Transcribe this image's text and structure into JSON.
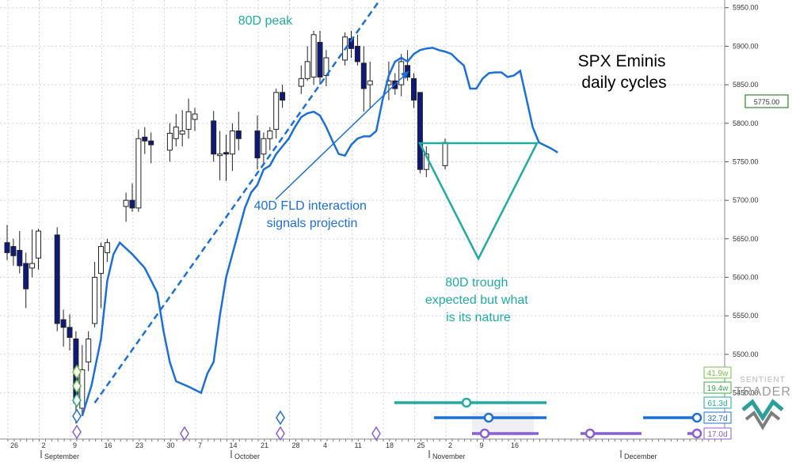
{
  "chart_data": {
    "type": "candlestick",
    "title": "SPX Eminis daily cycles",
    "watermark": "SENTIENT TRADER",
    "current_price_label": "5775.00",
    "y_ticks": [
      5450,
      5500,
      5550,
      5600,
      5650,
      5700,
      5750,
      5800,
      5850,
      5900,
      5950
    ],
    "y_tick_labels": [
      "5450.00",
      "5500.00",
      "5550.00",
      "5600.00",
      "5650.00",
      "5700.00",
      "5750.00",
      "5800.00",
      "5850.00",
      "5900.00",
      "5950.00"
    ],
    "ylim": [
      5390,
      5960
    ],
    "x_day_labels": [
      "26",
      "2",
      "9",
      "16",
      "23",
      "30",
      "7",
      "14",
      "21",
      "28",
      "4",
      "11",
      "18",
      "25",
      "2",
      "9",
      "16"
    ],
    "x_month_labels": [
      "September",
      "October",
      "November",
      "December"
    ],
    "candles": [
      {
        "d": 0,
        "o": 5645,
        "h": 5668,
        "l": 5622,
        "c": 5632
      },
      {
        "d": 1,
        "o": 5640,
        "h": 5650,
        "l": 5615,
        "c": 5628
      },
      {
        "d": 2,
        "o": 5635,
        "h": 5660,
        "l": 5605,
        "c": 5615
      },
      {
        "d": 3,
        "o": 5618,
        "h": 5632,
        "l": 5560,
        "c": 5585
      },
      {
        "d": 4,
        "o": 5612,
        "h": 5662,
        "l": 5600,
        "c": 5618
      },
      {
        "d": 5,
        "o": 5625,
        "h": 5663,
        "l": 5610,
        "c": 5660
      },
      {
        "d": 8,
        "o": 5655,
        "h": 5665,
        "l": 5530,
        "c": 5540
      },
      {
        "d": 9,
        "o": 5545,
        "h": 5558,
        "l": 5510,
        "c": 5535
      },
      {
        "d": 10,
        "o": 5535,
        "h": 5552,
        "l": 5505,
        "c": 5522
      },
      {
        "d": 11,
        "o": 5520,
        "h": 5530,
        "l": 5410,
        "c": 5437
      },
      {
        "d": 12,
        "o": 5430,
        "h": 5512,
        "l": 5420,
        "c": 5480
      },
      {
        "d": 13,
        "o": 5490,
        "h": 5530,
        "l": 5478,
        "c": 5520
      },
      {
        "d": 14,
        "o": 5540,
        "h": 5620,
        "l": 5535,
        "c": 5600
      },
      {
        "d": 15,
        "o": 5605,
        "h": 5645,
        "l": 5560,
        "c": 5640
      },
      {
        "d": 16,
        "o": 5632,
        "h": 5650,
        "l": 5620,
        "c": 5645
      },
      {
        "d": 19,
        "o": 5692,
        "h": 5710,
        "l": 5672,
        "c": 5700
      },
      {
        "d": 20,
        "o": 5700,
        "h": 5722,
        "l": 5685,
        "c": 5690
      },
      {
        "d": 21,
        "o": 5690,
        "h": 5792,
        "l": 5685,
        "c": 5780
      },
      {
        "d": 22,
        "o": 5782,
        "h": 5795,
        "l": 5760,
        "c": 5777
      },
      {
        "d": 23,
        "o": 5777,
        "h": 5788,
        "l": 5748,
        "c": 5772
      },
      {
        "d": 26,
        "o": 5765,
        "h": 5800,
        "l": 5750,
        "c": 5787
      },
      {
        "d": 27,
        "o": 5780,
        "h": 5812,
        "l": 5770,
        "c": 5795
      },
      {
        "d": 28,
        "o": 5786,
        "h": 5817,
        "l": 5770,
        "c": 5790
      },
      {
        "d": 29,
        "o": 5792,
        "h": 5832,
        "l": 5780,
        "c": 5815
      },
      {
        "d": 30,
        "o": 5805,
        "h": 5820,
        "l": 5790,
        "c": 5812
      },
      {
        "d": 33,
        "o": 5803,
        "h": 5816,
        "l": 5750,
        "c": 5760
      },
      {
        "d": 34,
        "o": 5758,
        "h": 5790,
        "l": 5726,
        "c": 5760
      },
      {
        "d": 35,
        "o": 5762,
        "h": 5785,
        "l": 5725,
        "c": 5760
      },
      {
        "d": 36,
        "o": 5760,
        "h": 5800,
        "l": 5738,
        "c": 5790
      },
      {
        "d": 37,
        "o": 5790,
        "h": 5815,
        "l": 5765,
        "c": 5780
      },
      {
        "d": 40,
        "o": 5790,
        "h": 5810,
        "l": 5740,
        "c": 5755
      },
      {
        "d": 41,
        "o": 5760,
        "h": 5788,
        "l": 5745,
        "c": 5780
      },
      {
        "d": 42,
        "o": 5780,
        "h": 5795,
        "l": 5765,
        "c": 5790
      },
      {
        "d": 43,
        "o": 5792,
        "h": 5845,
        "l": 5780,
        "c": 5840
      },
      {
        "d": 44,
        "o": 5840,
        "h": 5850,
        "l": 5820,
        "c": 5830
      },
      {
        "d": 47,
        "o": 5848,
        "h": 5875,
        "l": 5838,
        "c": 5858
      },
      {
        "d": 48,
        "o": 5858,
        "h": 5900,
        "l": 5855,
        "c": 5880
      },
      {
        "d": 49,
        "o": 5860,
        "h": 5920,
        "l": 5850,
        "c": 5915
      },
      {
        "d": 50,
        "o": 5905,
        "h": 5920,
        "l": 5850,
        "c": 5860
      },
      {
        "d": 51,
        "o": 5862,
        "h": 5895,
        "l": 5848,
        "c": 5885
      },
      {
        "d": 54,
        "o": 5882,
        "h": 5918,
        "l": 5875,
        "c": 5912
      },
      {
        "d": 55,
        "o": 5910,
        "h": 5920,
        "l": 5885,
        "c": 5897
      },
      {
        "d": 56,
        "o": 5900,
        "h": 5915,
        "l": 5875,
        "c": 5880
      },
      {
        "d": 57,
        "o": 5878,
        "h": 5900,
        "l": 5815,
        "c": 5845
      },
      {
        "d": 58,
        "o": 5850,
        "h": 5880,
        "l": 5820,
        "c": 5855
      },
      {
        "d": 61,
        "o": 5850,
        "h": 5880,
        "l": 5830,
        "c": 5855
      },
      {
        "d": 62,
        "o": 5855,
        "h": 5865,
        "l": 5837,
        "c": 5845
      },
      {
        "d": 63,
        "o": 5850,
        "h": 5890,
        "l": 5835,
        "c": 5880
      },
      {
        "d": 64,
        "o": 5875,
        "h": 5895,
        "l": 5855,
        "c": 5860
      },
      {
        "d": 65,
        "o": 5858,
        "h": 5865,
        "l": 5820,
        "c": 5830
      },
      {
        "d": 66,
        "o": 5840,
        "h": 5840,
        "l": 5735,
        "c": 5740
      },
      {
        "d": 67,
        "o": 5740,
        "h": 5770,
        "l": 5730,
        "c": 5760
      },
      {
        "d": 70,
        "o": 5745,
        "h": 5780,
        "l": 5740,
        "c": 5775
      }
    ],
    "cycle_line": [
      [
        12,
        5420
      ],
      [
        13.5,
        5460
      ],
      [
        15,
        5520
      ],
      [
        16,
        5595
      ],
      [
        17,
        5630
      ],
      [
        18,
        5645
      ],
      [
        20,
        5630
      ],
      [
        22,
        5612
      ],
      [
        24,
        5580
      ],
      [
        25,
        5530
      ],
      [
        26,
        5490
      ],
      [
        27,
        5465
      ],
      [
        29,
        5458
      ],
      [
        31,
        5450
      ],
      [
        32,
        5475
      ],
      [
        33,
        5490
      ],
      [
        34,
        5550
      ],
      [
        35,
        5600
      ],
      [
        36,
        5630
      ],
      [
        37,
        5660
      ],
      [
        38,
        5690
      ],
      [
        39,
        5710
      ],
      [
        40,
        5720
      ],
      [
        41,
        5740
      ],
      [
        42,
        5745
      ],
      [
        43,
        5760
      ],
      [
        44,
        5770
      ],
      [
        45,
        5780
      ],
      [
        46,
        5795
      ],
      [
        47,
        5808
      ],
      [
        48,
        5813
      ],
      [
        49,
        5815
      ],
      [
        50,
        5810
      ],
      [
        51,
        5795
      ],
      [
        52,
        5777
      ],
      [
        53,
        5760
      ],
      [
        54,
        5758
      ],
      [
        55,
        5772
      ],
      [
        56,
        5780
      ],
      [
        57,
        5783
      ],
      [
        58,
        5783
      ],
      [
        59,
        5790
      ],
      [
        60,
        5830
      ],
      [
        61,
        5862
      ],
      [
        62,
        5880
      ],
      [
        63,
        5885
      ],
      [
        64,
        5880
      ],
      [
        65,
        5890
      ],
      [
        66,
        5895
      ],
      [
        67,
        5897
      ],
      [
        68,
        5898
      ],
      [
        69,
        5895
      ],
      [
        70,
        5893
      ],
      [
        71,
        5890
      ],
      [
        72,
        5882
      ],
      [
        73,
        5875
      ],
      [
        74,
        5845
      ],
      [
        75,
        5845
      ],
      [
        76,
        5858
      ],
      [
        77,
        5865
      ],
      [
        78,
        5866
      ],
      [
        79,
        5866
      ],
      [
        80,
        5860
      ],
      [
        81,
        5862
      ],
      [
        82,
        5868
      ],
      [
        83,
        5832
      ],
      [
        84,
        5795
      ],
      [
        85,
        5775
      ],
      [
        86,
        5771
      ],
      [
        87,
        5767
      ],
      [
        88,
        5762
      ]
    ],
    "peak_line": {
      "from": [
        14,
        5437
      ],
      "to": [
        60,
        5965
      ]
    },
    "annotations": [
      {
        "id": "peak",
        "text": "80D peak"
      },
      {
        "id": "fld",
        "lines": [
          "40D FLD interaction",
          "signals projectin"
        ]
      },
      {
        "id": "trough",
        "lines": [
          "80D trough",
          "expected but what",
          "is its nature"
        ]
      }
    ],
    "title_lines": [
      "SPX Eminis",
      "daily cycles"
    ],
    "cycle_labels": [
      {
        "text": "41.9w",
        "color": "#7ac143"
      },
      {
        "text": "19.4w",
        "color": "#3aa845"
      },
      {
        "text": "61.3d",
        "color": "#1fa89a"
      },
      {
        "text": "32.7d",
        "color": "#1f6fd1"
      },
      {
        "text": "17.0d",
        "color": "#8a5fd1"
      }
    ],
    "colors": {
      "bear": "#0d1a7a",
      "bull": "#ffffff",
      "cycle": "#1b6fd8",
      "teal": "#20aba2",
      "purple": "#8a5fd1",
      "green": "#7ac143"
    }
  }
}
